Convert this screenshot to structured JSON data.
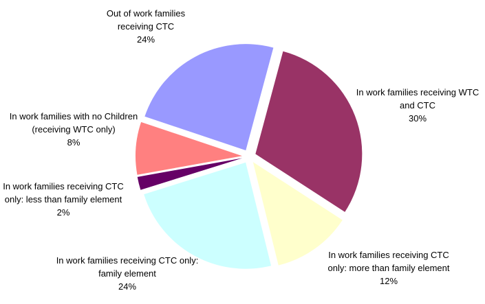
{
  "chart_data": {
    "type": "pie",
    "categories": [
      "In work families receiving WTC and CTC",
      "In work families receiving CTC only: more than family element",
      "In work families receiving CTC only: family element",
      "In work families receiving CTC only: less than family element",
      "In work families with no Children (receiving WTC only)",
      "Out of work families receiving CTC"
    ],
    "values": [
      30,
      12,
      24,
      2,
      8,
      24
    ],
    "value_labels": [
      "30%",
      "12%",
      "24%",
      "2%",
      "8%",
      "24%"
    ],
    "colors": [
      "#993366",
      "#ffffcc",
      "#ccffff",
      "#660066",
      "#ff8080",
      "#9999ff"
    ]
  }
}
